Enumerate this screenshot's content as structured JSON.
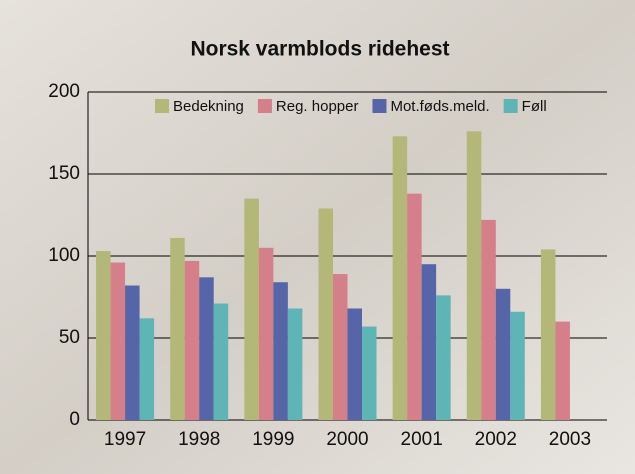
{
  "chart_data": {
    "type": "bar",
    "title": "Norsk varmblods ridehest",
    "categories": [
      "1997",
      "1998",
      "1999",
      "2000",
      "2001",
      "2002",
      "2003"
    ],
    "series": [
      {
        "name": "Bedekning",
        "color": "#b3b778",
        "values": [
          103,
          111,
          135,
          129,
          173,
          176,
          104
        ]
      },
      {
        "name": "Reg. hopper",
        "color": "#d47f8a",
        "values": [
          96,
          97,
          105,
          89,
          138,
          122,
          60
        ]
      },
      {
        "name": "Mot.føds.meld.",
        "color": "#5565a8",
        "values": [
          82,
          87,
          84,
          68,
          95,
          80,
          null
        ]
      },
      {
        "name": "Føll",
        "color": "#5fb4b5",
        "values": [
          62,
          71,
          68,
          57,
          76,
          66,
          null
        ]
      }
    ],
    "ylim": [
      0,
      200
    ],
    "yticks": [
      0,
      50,
      100,
      150,
      200
    ],
    "grid": true
  }
}
